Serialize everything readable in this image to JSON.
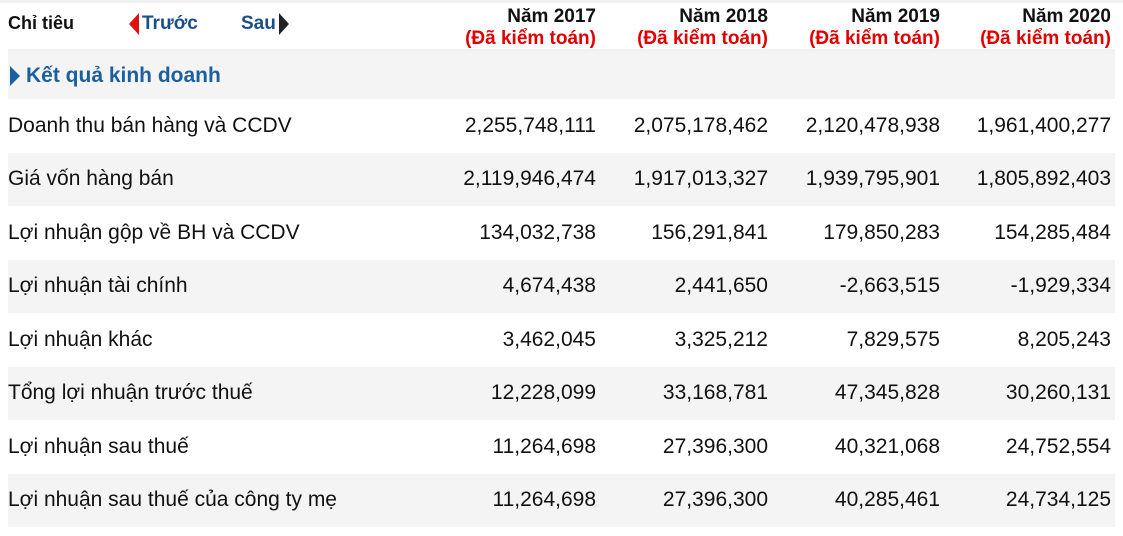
{
  "header": {
    "title": "Chỉ tiêu",
    "prev_label": "Trước",
    "next_label": "Sau",
    "columns": [
      {
        "year": "Năm 2017",
        "status": "(Đã kiểm toán)"
      },
      {
        "year": "Năm 2018",
        "status": "(Đã kiểm toán)"
      },
      {
        "year": "Năm 2019",
        "status": "(Đã kiểm toán)"
      },
      {
        "year": "Năm 2020",
        "status": "(Đã kiểm toán)"
      }
    ]
  },
  "section": {
    "label": "Kết quả kinh doanh"
  },
  "rows": [
    {
      "name": "Doanh thu bán hàng và CCDV",
      "values": [
        "2,255,748,111",
        "2,075,178,462",
        "2,120,478,938",
        "1,961,400,277"
      ]
    },
    {
      "name": "Giá vốn hàng bán",
      "values": [
        "2,119,946,474",
        "1,917,013,327",
        "1,939,795,901",
        "1,805,892,403"
      ]
    },
    {
      "name": "Lợi nhuận gộp về BH và CCDV",
      "values": [
        "134,032,738",
        "156,291,841",
        "179,850,283",
        "154,285,484"
      ]
    },
    {
      "name": "Lợi nhuận tài chính",
      "values": [
        "4,674,438",
        "2,441,650",
        "-2,663,515",
        "-1,929,334"
      ]
    },
    {
      "name": "Lợi nhuận khác",
      "values": [
        "3,462,045",
        "3,325,212",
        "7,829,575",
        "8,205,243"
      ]
    },
    {
      "name": "Tổng lợi nhuận trước thuế",
      "values": [
        "12,228,099",
        "33,168,781",
        "47,345,828",
        "30,260,131"
      ]
    },
    {
      "name": "Lợi nhuận sau thuế",
      "values": [
        "11,264,698",
        "27,396,300",
        "40,321,068",
        "24,752,554"
      ]
    },
    {
      "name": "Lợi nhuận sau thuế của công ty mẹ",
      "values": [
        "11,264,698",
        "27,396,300",
        "40,285,461",
        "24,734,125"
      ]
    }
  ],
  "colors": {
    "nav_link": "#1a4f8a",
    "prev_arrow": "#e01010",
    "audit_status": "#e00000",
    "section_text": "#1a5fa0",
    "alt_row_bg": "#f4f4f4"
  }
}
